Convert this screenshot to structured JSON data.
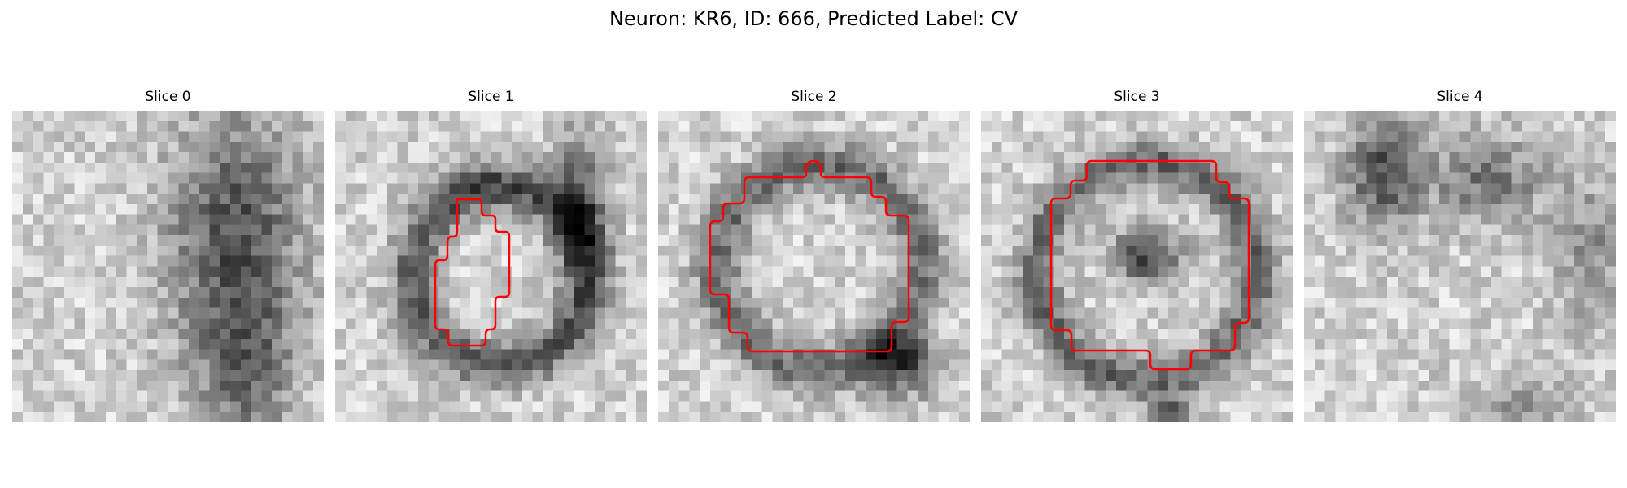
{
  "figure": {
    "title": "Neuron: KR6, ID: 666, Predicted Label: CV"
  },
  "colors": {
    "background": "#ffffff",
    "contour": "#ff0000",
    "colormap": "grayscale"
  },
  "slices": [
    {
      "title": "Slice 0",
      "has_contour": false
    },
    {
      "title": "Slice 1",
      "has_contour": true
    },
    {
      "title": "Slice 2",
      "has_contour": true
    },
    {
      "title": "Slice 3",
      "has_contour": true
    },
    {
      "title": "Slice 4",
      "has_contour": false
    }
  ]
}
